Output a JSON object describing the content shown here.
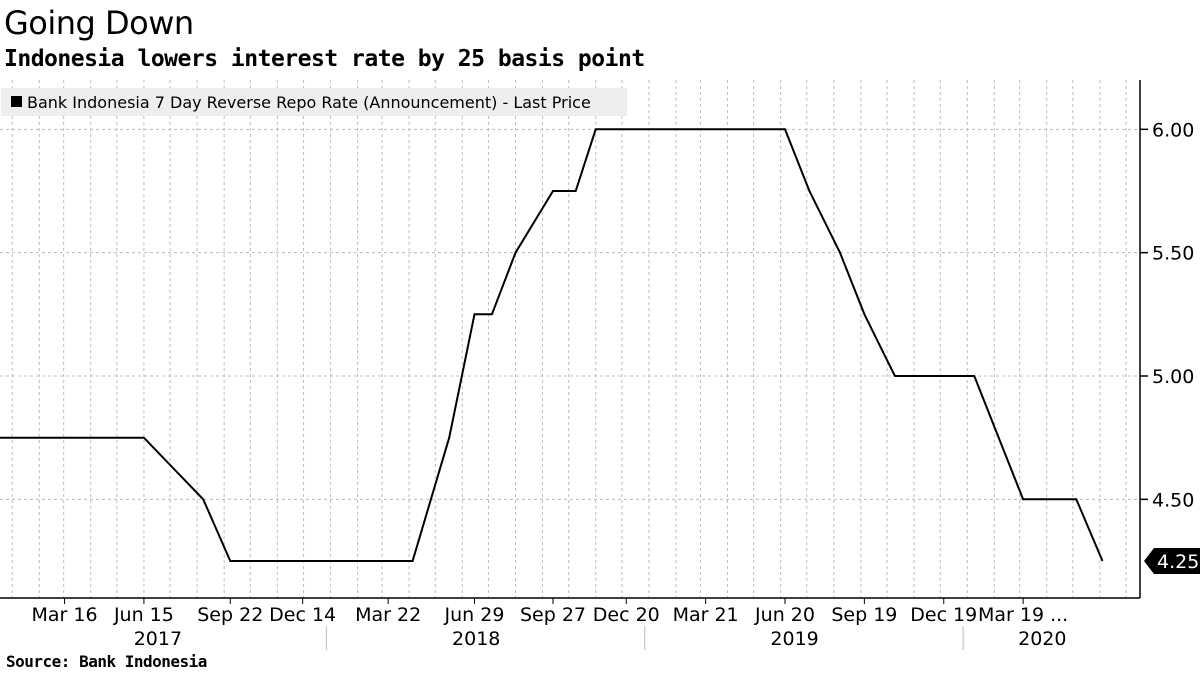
{
  "header": {
    "title": "Going Down",
    "subtitle": "Indonesia lowers interest rate by 25 basis point"
  },
  "footer": {
    "source": "Source:  Bank Indonesia"
  },
  "chart_data": {
    "type": "line",
    "title": "Going Down",
    "subtitle": "Indonesia lowers interest rate by 25 basis point",
    "legend": {
      "placement": "top-left",
      "entries": [
        "Bank Indonesia 7 Day Reverse Repo Rate (Announcement) - Last Price"
      ]
    },
    "grid": true,
    "y_axis": {
      "position": "right",
      "ylim": [
        4.1,
        6.2
      ],
      "ticks": [
        4.5,
        5.0,
        5.5,
        6.0
      ],
      "tick_labels": [
        "4.50",
        "5.00",
        "5.50",
        "6.00"
      ]
    },
    "x_axis": {
      "xlim": [
        "2017-01-01",
        "2020-07-31"
      ],
      "tick_labels": [
        {
          "date": "2017-03-16",
          "label": "Mar 16"
        },
        {
          "date": "2017-06-15",
          "label": "Jun 15"
        },
        {
          "date": "2017-09-22",
          "label": "Sep 22"
        },
        {
          "date": "2017-12-14",
          "label": "Dec 14"
        },
        {
          "date": "2018-03-22",
          "label": "Mar 22"
        },
        {
          "date": "2018-06-29",
          "label": "Jun 29"
        },
        {
          "date": "2018-09-27",
          "label": "Sep 27"
        },
        {
          "date": "2018-12-20",
          "label": "Dec 20"
        },
        {
          "date": "2019-03-21",
          "label": "Mar 21"
        },
        {
          "date": "2019-06-20",
          "label": "Jun 20"
        },
        {
          "date": "2019-09-19",
          "label": "Sep 19"
        },
        {
          "date": "2019-12-19",
          "label": "Dec 19"
        },
        {
          "date": "2020-03-19",
          "label": "Mar 19 ..."
        }
      ],
      "years": [
        {
          "label": "2017",
          "center": "2017-07-01"
        },
        {
          "label": "2018",
          "center": "2018-07-01"
        },
        {
          "label": "2019",
          "center": "2019-07-01"
        },
        {
          "label": "2020",
          "center": "2020-04-10"
        }
      ],
      "year_separators": [
        "2018-01-01",
        "2019-01-01",
        "2020-01-01"
      ]
    },
    "series": [
      {
        "name": "Bank Indonesia 7 Day Reverse Repo Rate (Announcement) - Last Price",
        "color": "#000000",
        "points": [
          {
            "x": "2017-01-01",
            "y": 4.75
          },
          {
            "x": "2017-06-15",
            "y": 4.75
          },
          {
            "x": "2017-08-22",
            "y": 4.5
          },
          {
            "x": "2017-09-22",
            "y": 4.25
          },
          {
            "x": "2018-04-19",
            "y": 4.25
          },
          {
            "x": "2018-05-31",
            "y": 4.75
          },
          {
            "x": "2018-06-29",
            "y": 5.25
          },
          {
            "x": "2018-07-19",
            "y": 5.25
          },
          {
            "x": "2018-08-15",
            "y": 5.5
          },
          {
            "x": "2018-09-27",
            "y": 5.75
          },
          {
            "x": "2018-10-23",
            "y": 5.75
          },
          {
            "x": "2018-11-15",
            "y": 6.0
          },
          {
            "x": "2019-06-20",
            "y": 6.0
          },
          {
            "x": "2019-07-18",
            "y": 5.75
          },
          {
            "x": "2019-08-22",
            "y": 5.5
          },
          {
            "x": "2019-09-19",
            "y": 5.25
          },
          {
            "x": "2019-10-24",
            "y": 5.0
          },
          {
            "x": "2020-01-23",
            "y": 5.0
          },
          {
            "x": "2020-02-20",
            "y": 4.75
          },
          {
            "x": "2020-03-19",
            "y": 4.5
          },
          {
            "x": "2020-05-19",
            "y": 4.5
          },
          {
            "x": "2020-06-18",
            "y": 4.25
          }
        ]
      }
    ],
    "last_value": "4.25"
  }
}
